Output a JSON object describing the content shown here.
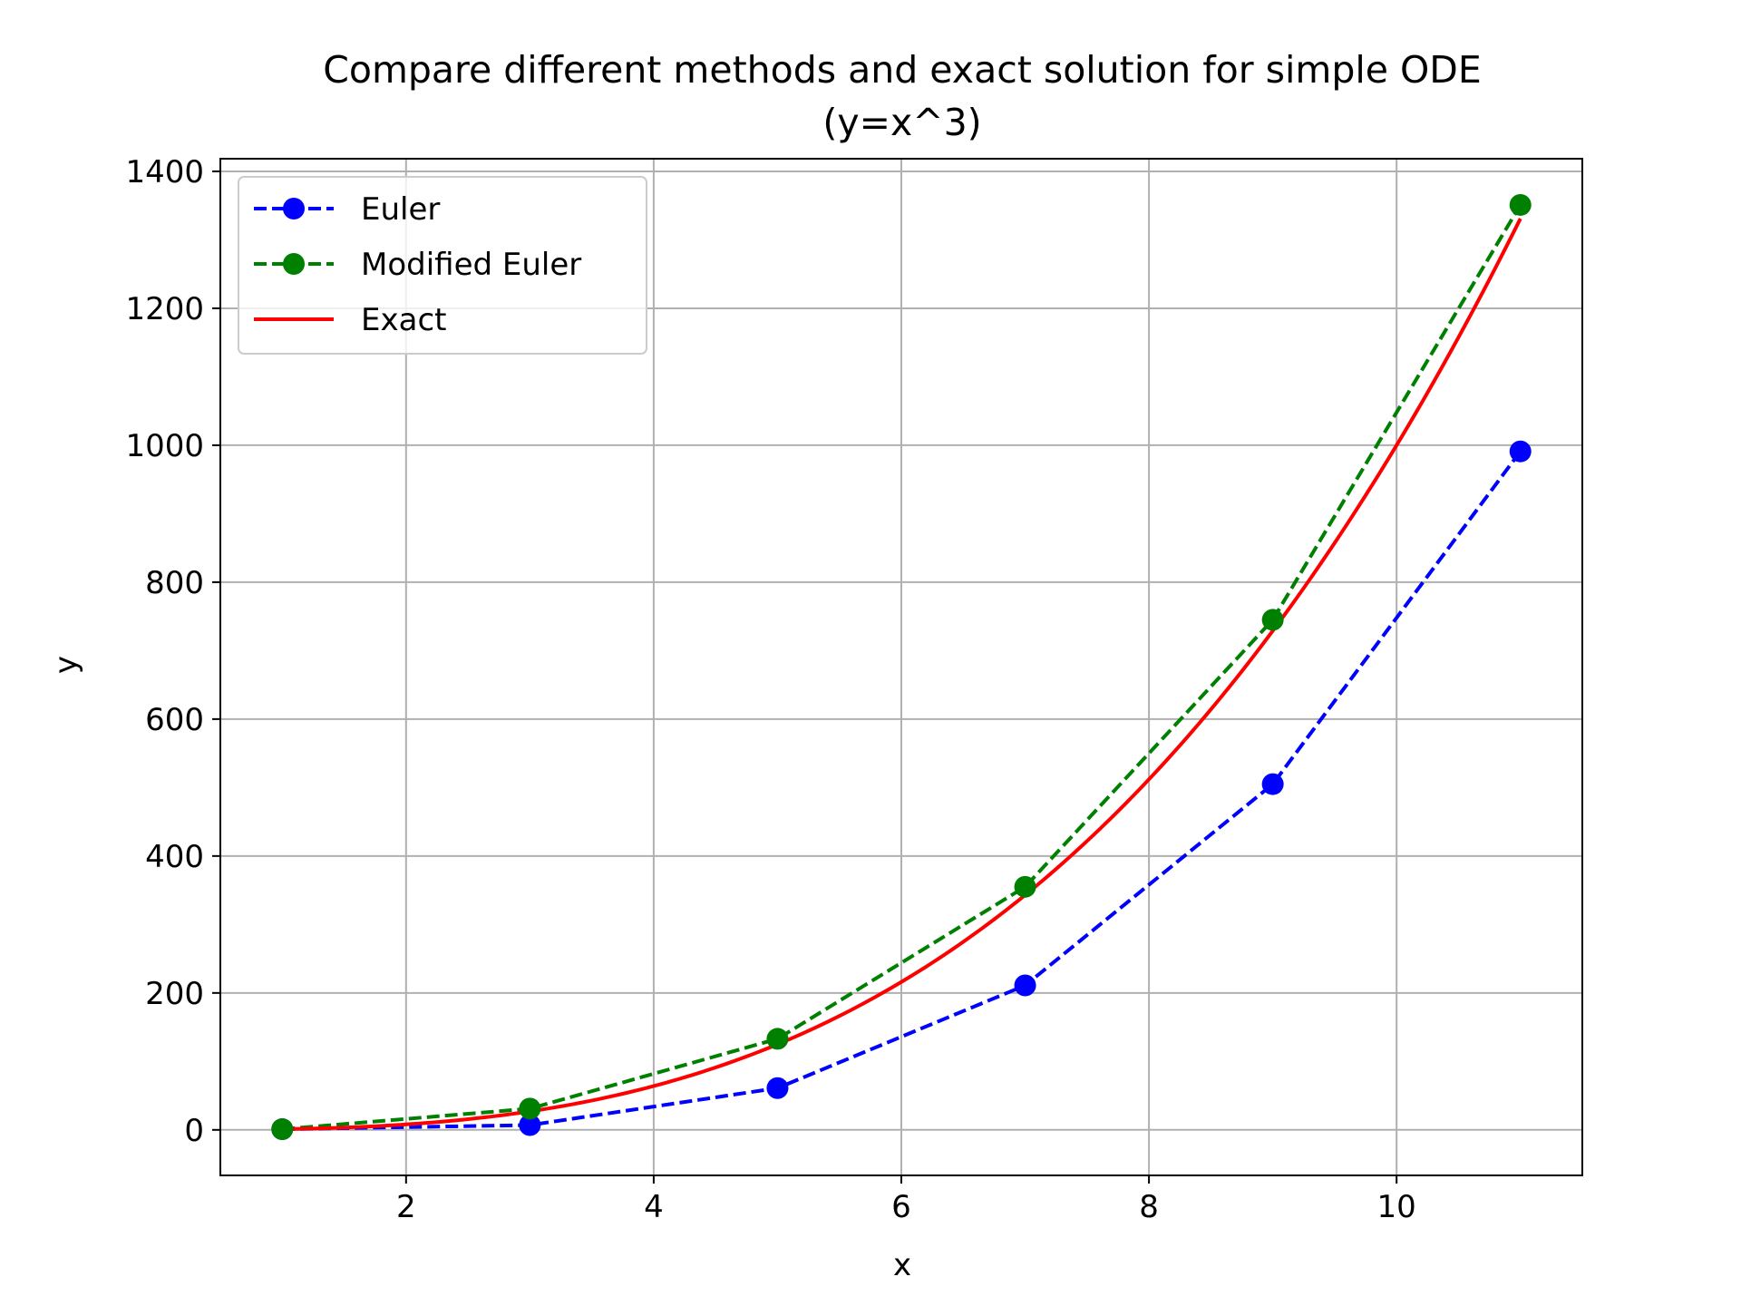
{
  "chart_data": {
    "type": "line",
    "title_line1": "Compare different methods and exact solution for simple ODE",
    "title_line2": "(y=x^3)",
    "xlabel": "x",
    "ylabel": "y",
    "xlim": [
      0.5,
      11.5
    ],
    "ylim": [
      -66.5,
      1418.5
    ],
    "xticks": [
      2,
      4,
      6,
      8,
      10
    ],
    "yticks": [
      0,
      200,
      400,
      600,
      800,
      1000,
      1200,
      1400
    ],
    "grid": true,
    "legend_position": "upper-left",
    "series": [
      {
        "name": "Euler",
        "style": "dashed-markers",
        "color": "#0000ff",
        "x": [
          1,
          3,
          5,
          7,
          9,
          11
        ],
        "y": [
          1,
          7,
          61,
          211,
          505,
          991
        ]
      },
      {
        "name": "Modified Euler",
        "style": "dashed-markers",
        "color": "#008000",
        "x": [
          1,
          3,
          5,
          7,
          9,
          11
        ],
        "y": [
          1,
          31,
          133,
          355,
          745,
          1351
        ]
      },
      {
        "name": "Exact",
        "style": "solid",
        "color": "#ff0000",
        "function": "x^3",
        "x_range": [
          1,
          11
        ]
      }
    ]
  }
}
